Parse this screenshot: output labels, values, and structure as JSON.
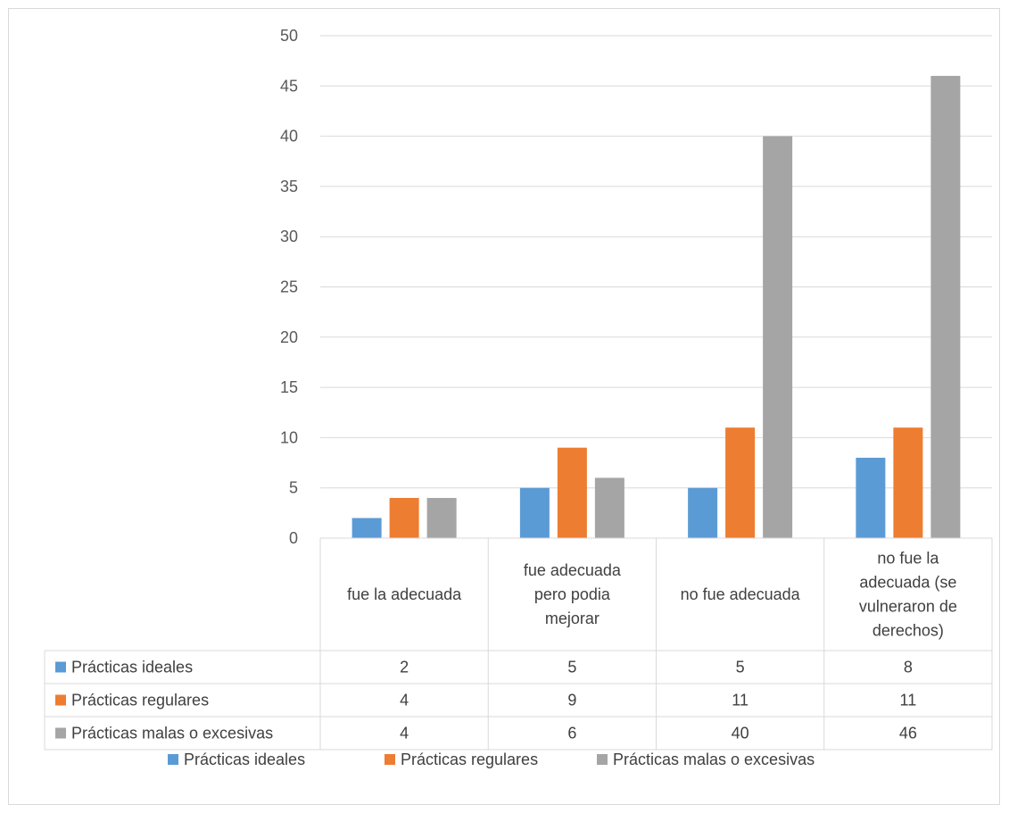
{
  "chart_data": {
    "type": "bar",
    "categories": [
      [
        "fue la adecuada"
      ],
      [
        "fue  adecuada",
        "pero podia",
        "mejorar"
      ],
      [
        "no fue adecuada"
      ],
      [
        "no fue la",
        "adecuada (se",
        "vulneraron de",
        "derechos)"
      ]
    ],
    "series": [
      {
        "name": "Prácticas  ideales",
        "values": [
          2,
          5,
          5,
          8
        ],
        "color": "#5b9bd5"
      },
      {
        "name": "Prácticas regulares",
        "values": [
          4,
          9,
          11,
          11
        ],
        "color": "#ed7d31"
      },
      {
        "name": "Prácticas  malas o excesivas",
        "values": [
          4,
          6,
          40,
          46
        ],
        "color": "#a5a5a5"
      }
    ],
    "ylim": [
      0,
      50
    ],
    "yticks": [
      0,
      5,
      10,
      15,
      20,
      25,
      30,
      35,
      40,
      45,
      50
    ],
    "grid": true,
    "data_table": true,
    "legend_position": "bottom"
  }
}
